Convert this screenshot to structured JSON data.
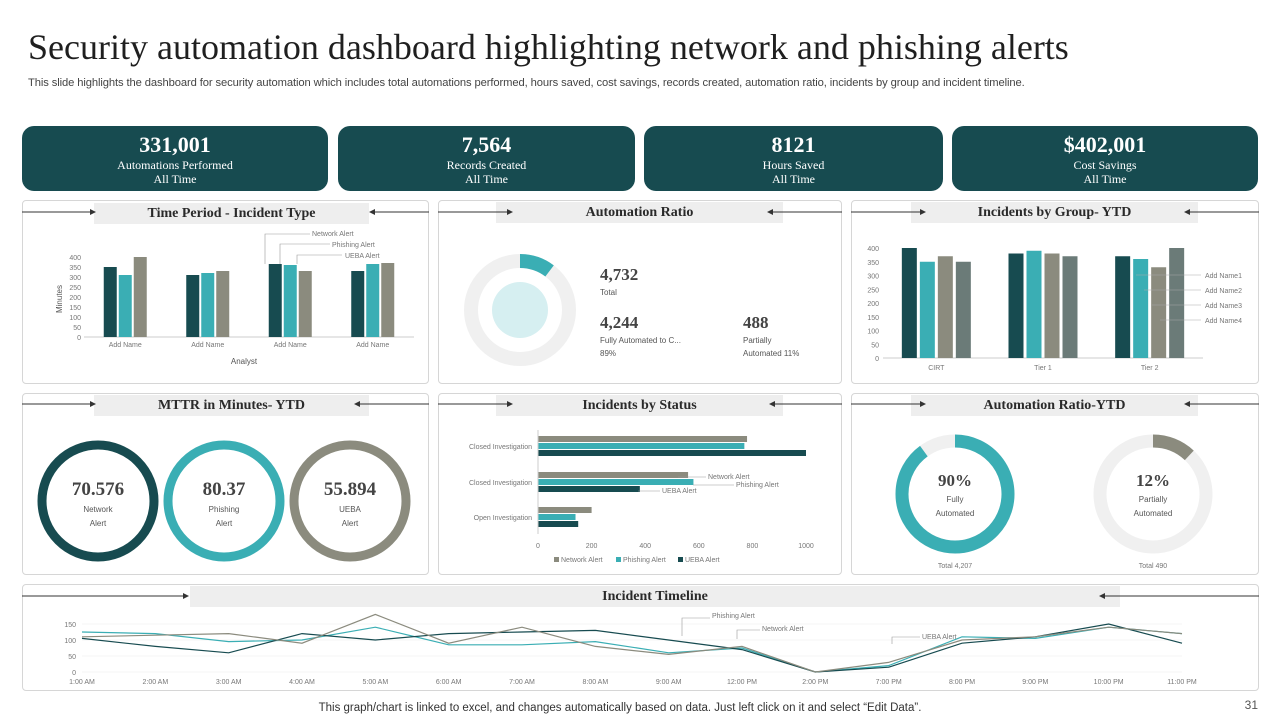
{
  "title": "Security automation dashboard highlighting network and phishing alerts",
  "subtitle": "This slide highlights the dashboard for security automation which includes total automations performed, hours saved, cost savings, records created, automation ratio, incidents by group and incident timeline.",
  "kpis": [
    {
      "value": "331,001",
      "label": "Automations Performed",
      "sub": "All Time"
    },
    {
      "value": "7,564",
      "label": "Records Created",
      "sub": "All Time"
    },
    {
      "value": "8121",
      "label": "Hours Saved",
      "sub": "All Time"
    },
    {
      "value": "$402,001",
      "label": "Cost Savings",
      "sub": "All Time"
    }
  ],
  "colors": {
    "dark": "#174b50",
    "teal": "#3aaeb4",
    "gray": "#8b8b7e",
    "slate": "#6b7b78",
    "light": "#f0f0f0"
  },
  "panels": {
    "time_period": "Time Period - Incident Type",
    "automation_ratio": "Automation Ratio",
    "incidents_group": "Incidents by Group- YTD",
    "mttr": "MTTR  in Minutes- YTD",
    "incidents_status": "Incidents by Status",
    "automation_ratio_ytd": "Automation Ratio-YTD",
    "timeline": "Incident Timeline"
  },
  "automation_ratio": {
    "total_value": "4,732",
    "total_label": "Total",
    "fully_value": "4,244",
    "fully_label": "Fully Automated to C...",
    "fully_pct": "89%",
    "partial_value": "488",
    "partial_label": "Partially",
    "partial_pct": "Automated 11%"
  },
  "mttr": [
    {
      "value": "70.576",
      "line1": "Network",
      "line2": "Alert"
    },
    {
      "value": "80.37",
      "line1": "Phishing",
      "line2": "Alert"
    },
    {
      "value": "55.894",
      "line1": "UEBA",
      "line2": "Alert"
    }
  ],
  "ratio_ytd": [
    {
      "value": "90%",
      "line1": "Fully",
      "line2": "Automated",
      "total": "Total 4,207",
      "fraction": 0.9
    },
    {
      "value": "12%",
      "line1": "Partially",
      "line2": "Automated",
      "total": "Total 490",
      "fraction": 0.12
    }
  ],
  "chart_data": [
    {
      "id": "time_period",
      "type": "bar",
      "categories": [
        "Add Name",
        "Add Name",
        "Add Name",
        "Add Name"
      ],
      "series": [
        {
          "name": "Network Alert",
          "values": [
            350,
            310,
            365,
            330
          ]
        },
        {
          "name": "Phishing Alert",
          "values": [
            310,
            320,
            360,
            365
          ]
        },
        {
          "name": "UEBA Alert",
          "values": [
            400,
            330,
            330,
            370
          ]
        }
      ],
      "xlabel": "Analyst",
      "ylabel": "Minutes",
      "ylim": [
        0,
        400
      ],
      "yticks": [
        "0",
        "50",
        "100",
        "150",
        "200",
        "250",
        "300",
        "350",
        "400"
      ]
    },
    {
      "id": "automation_ratio",
      "type": "pie",
      "labels": [
        "Fully Automated",
        "Partially Automated"
      ],
      "values": [
        4244,
        488
      ]
    },
    {
      "id": "incidents_group",
      "type": "bar",
      "categories": [
        "CIRT",
        "Tier 1",
        "Tier 2"
      ],
      "series": [
        {
          "name": "Add Name1",
          "values": [
            400,
            380,
            370
          ]
        },
        {
          "name": "Add Name2",
          "values": [
            350,
            390,
            360
          ]
        },
        {
          "name": "Add Name3",
          "values": [
            370,
            380,
            330
          ]
        },
        {
          "name": "Add Name4",
          "values": [
            350,
            370,
            400
          ]
        }
      ],
      "ylim": [
        0,
        400
      ],
      "yticks": [
        "0",
        "50",
        "100",
        "150",
        "200",
        "250",
        "300",
        "350",
        "400"
      ]
    },
    {
      "id": "incidents_status",
      "type": "bar",
      "orientation": "horizontal",
      "categories": [
        "Closed Investigation",
        "Closed Investigation",
        "Open Investigation"
      ],
      "series": [
        {
          "name": "Network Alert",
          "values": [
            780,
            560,
            200
          ]
        },
        {
          "name": "Phishing Alert",
          "values": [
            770,
            580,
            140
          ]
        },
        {
          "name": "UEBA Alert",
          "values": [
            1000,
            380,
            150
          ]
        }
      ],
      "xlim": [
        0,
        1000
      ],
      "xticks": [
        "0",
        "200",
        "400",
        "600",
        "800",
        "1000"
      ]
    },
    {
      "id": "timeline",
      "type": "line",
      "x": [
        "1:00 AM",
        "2:00 AM",
        "3:00 AM",
        "4:00 AM",
        "5:00 AM",
        "6:00 AM",
        "7:00 AM",
        "8:00 AM",
        "9:00 AM",
        "12:00 PM",
        "2:00 PM",
        "7:00 PM",
        "8:00 PM",
        "9:00 PM",
        "10:00 PM",
        "11:00 PM"
      ],
      "series": [
        {
          "name": "Phishing Alert",
          "values": [
            125,
            120,
            95,
            100,
            140,
            85,
            85,
            95,
            60,
            75,
            0,
            20,
            110,
            105,
            140,
            120
          ]
        },
        {
          "name": "Network Alert",
          "values": [
            105,
            80,
            60,
            120,
            100,
            120,
            125,
            130,
            100,
            70,
            0,
            15,
            90,
            110,
            150,
            90
          ]
        },
        {
          "name": "UEBA Alert",
          "values": [
            110,
            115,
            120,
            90,
            180,
            90,
            140,
            80,
            55,
            80,
            0,
            30,
            100,
            110,
            140,
            120
          ]
        }
      ],
      "ylim": [
        0,
        150
      ],
      "yticks": [
        "0",
        "50",
        "100",
        "150"
      ]
    }
  ],
  "footer": "This graph/chart is linked to excel,  and changes automatically based on data. Just left click on it and select “Edit Data”.",
  "page_number": "31"
}
